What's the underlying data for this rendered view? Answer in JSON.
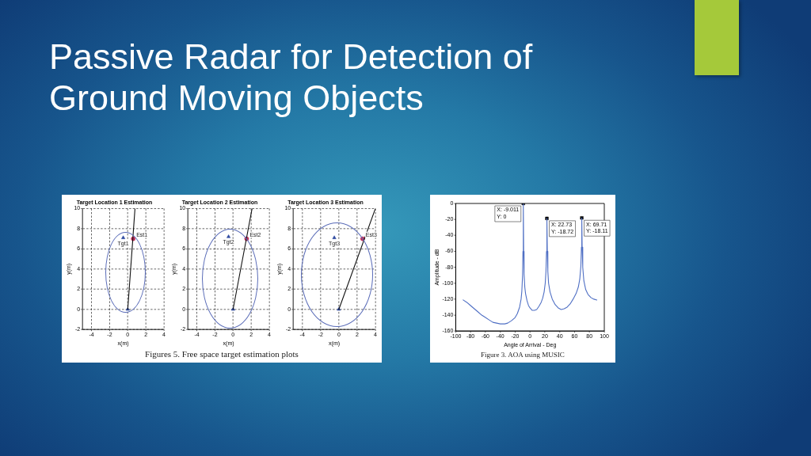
{
  "chart_data": [
    {
      "type": "other",
      "title": "Passive Radar for Detection of Ground Moving Objects"
    },
    {
      "type": "line",
      "title": "Target Location 1 Estimation",
      "xlabel": "x(m)",
      "ylabel": "y(m)",
      "xlim": [
        -5,
        4
      ],
      "xticks": [
        -4,
        -2,
        0,
        2,
        4
      ],
      "ylim": [
        -2,
        10
      ],
      "yticks": [
        -2,
        0,
        2,
        4,
        6,
        8,
        10
      ],
      "grid": true,
      "series": [
        {
          "type": "line",
          "color": "#111111",
          "x": [
            0,
            0.8
          ],
          "values": [
            0,
            10
          ]
        },
        {
          "type": "scatter",
          "marker": "triangle",
          "color": "#2f4aa0",
          "x": [
            -0.5,
            0
          ],
          "values": [
            7.1,
            0
          ]
        },
        {
          "type": "scatter",
          "marker": "circle",
          "color": "#c0305a",
          "x": [
            0.6
          ],
          "values": [
            7.0
          ]
        }
      ],
      "annotations": [
        {
          "text": "Tgt1",
          "x": -0.5,
          "y": 7.1
        },
        {
          "text": "Est1",
          "x": 0.6,
          "y": 7.0
        },
        "Figures 5. Free space target estimation plots"
      ]
    },
    {
      "type": "line",
      "title": "Target Location 2 Estimation",
      "xlabel": "x(m)",
      "ylabel": "y(m)",
      "xlim": [
        -5,
        4
      ],
      "xticks": [
        -4,
        -2,
        0,
        2,
        4
      ],
      "ylim": [
        -2,
        10
      ],
      "yticks": [
        -2,
        0,
        2,
        4,
        6,
        8,
        10
      ],
      "grid": true,
      "series": [
        {
          "type": "line",
          "color": "#111111",
          "x": [
            0,
            2.1
          ],
          "values": [
            0,
            10
          ]
        },
        {
          "type": "scatter",
          "marker": "triangle",
          "color": "#2f4aa0",
          "x": [
            -0.5,
            0
          ],
          "values": [
            7.2,
            0
          ]
        },
        {
          "type": "scatter",
          "marker": "circle",
          "color": "#c0305a",
          "x": [
            1.5
          ],
          "values": [
            7.0
          ]
        }
      ],
      "annotations": [
        {
          "text": "Tgt2",
          "x": -0.5,
          "y": 7.2
        },
        {
          "text": "Est2",
          "x": 1.5,
          "y": 7.0
        }
      ]
    },
    {
      "type": "line",
      "title": "Target Location 3 Estimation",
      "xlabel": "x(m)",
      "ylabel": "y(m)",
      "xlim": [
        -5,
        4
      ],
      "xticks": [
        -4,
        -2,
        0,
        2,
        4
      ],
      "ylim": [
        -2,
        10
      ],
      "yticks": [
        -2,
        0,
        2,
        4,
        6,
        8,
        10
      ],
      "grid": true,
      "series": [
        {
          "type": "line",
          "color": "#111111",
          "x": [
            0,
            4.0
          ],
          "values": [
            0,
            10
          ]
        },
        {
          "type": "scatter",
          "marker": "triangle",
          "color": "#2f4aa0",
          "x": [
            -0.5,
            0
          ],
          "values": [
            7.1,
            0
          ]
        },
        {
          "type": "scatter",
          "marker": "circle",
          "color": "#c0305a",
          "x": [
            2.6
          ],
          "values": [
            7.0
          ]
        }
      ],
      "annotations": [
        {
          "text": "Tgt3",
          "x": -0.5,
          "y": 7.1
        },
        {
          "text": "Est3",
          "x": 2.6,
          "y": 7.0
        }
      ]
    },
    {
      "type": "line",
      "xlabel": "Angle of Arrival - Deg",
      "ylabel": "Amplitude - dB",
      "xlim": [
        -100,
        100
      ],
      "xticks": [
        -100,
        -80,
        -60,
        -40,
        -20,
        0,
        20,
        40,
        60,
        80,
        100
      ],
      "ylim": [
        -160,
        0
      ],
      "yticks": [
        -160,
        -140,
        -120,
        -100,
        -80,
        -60,
        -40,
        -20,
        0
      ],
      "grid": false,
      "series": [
        {
          "type": "line",
          "color": "#4f6fc4",
          "x": [
            -90,
            -85,
            -80,
            -75,
            -70,
            -65,
            -60,
            -55,
            -50,
            -45,
            -40,
            -37,
            -34,
            -30,
            -25,
            -20,
            -17,
            -14,
            -12,
            -11,
            -10,
            -9.5,
            -9.011,
            -8.5,
            -8,
            -7,
            -6,
            -4,
            -2,
            0,
            3,
            6,
            9,
            12,
            15,
            17,
            19,
            20.5,
            21.5,
            22.2,
            22.73,
            23.3,
            24,
            25,
            27,
            30,
            34,
            38,
            42,
            46,
            50,
            54,
            58,
            62,
            65,
            67,
            68.5,
            69.2,
            69.71,
            70.2,
            71,
            72.5,
            75,
            78,
            82,
            86,
            90
          ],
          "values": [
            -121,
            -124,
            -128,
            -132,
            -136,
            -140,
            -143,
            -146,
            -149,
            -150,
            -151,
            -151,
            -151,
            -150,
            -147,
            -143,
            -138,
            -130,
            -120,
            -110,
            -90,
            -60,
            0,
            -60,
            -88,
            -105,
            -113,
            -122,
            -128,
            -131,
            -134,
            -134,
            -133,
            -129,
            -124,
            -119,
            -111,
            -100,
            -85,
            -60,
            -18.72,
            -60,
            -85,
            -100,
            -111,
            -120,
            -127,
            -131,
            -133,
            -132,
            -130,
            -126,
            -120,
            -113,
            -105,
            -95,
            -78,
            -55,
            -18.11,
            -55,
            -80,
            -97,
            -108,
            -114,
            -118,
            -120,
            -121
          ]
        },
        {
          "type": "scatter",
          "marker": "square",
          "color": "#000000",
          "x": [
            -9.011,
            22.73,
            69.71
          ],
          "values": [
            0,
            -18.72,
            -18.11
          ]
        }
      ],
      "annotations": [
        {
          "text": "X: -9.011\nY: 0",
          "x": -9.011,
          "y": 0
        },
        {
          "text": "X: 22.73\nY: -18.72",
          "x": 22.73,
          "y": -18.72
        },
        {
          "text": "X: 69.71\nY: -18.11",
          "x": 69.71,
          "y": -18.11
        },
        "Figure 3.  AOA using MUSIC"
      ]
    }
  ]
}
